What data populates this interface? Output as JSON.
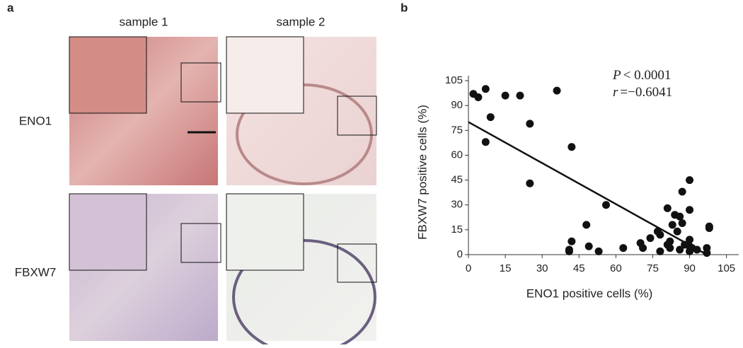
{
  "panel_labels": [
    "a",
    "b"
  ],
  "micrographs": {
    "columns": [
      "sample 1",
      "sample 2"
    ],
    "rows": [
      "ENO1",
      "FBXW7"
    ]
  },
  "chart_data": {
    "type": "scatter",
    "xlabel": "ENO1 positive cells (%)",
    "ylabel": "FBXW7 positive cells (%)",
    "annotations": [
      {
        "symbol": "P",
        "text": "< 0.0001"
      },
      {
        "symbol": "r",
        "text": "=−0.6041"
      }
    ],
    "xlim": [
      0,
      110
    ],
    "ylim": [
      0,
      108
    ],
    "xticks": [
      0,
      15,
      30,
      45,
      60,
      75,
      90,
      105
    ],
    "yticks": [
      0,
      15,
      30,
      45,
      60,
      75,
      90,
      105
    ],
    "color": "#111111",
    "x": [
      2,
      4,
      7,
      9,
      7,
      15,
      21,
      25,
      25,
      36,
      42,
      41,
      42,
      41,
      48,
      49,
      53,
      56,
      63,
      70,
      71,
      74,
      77,
      78,
      78,
      81,
      81,
      82,
      83,
      82,
      84,
      85,
      86,
      87,
      86,
      87,
      88,
      90,
      90,
      90,
      90,
      91,
      93,
      90,
      97,
      97,
      98,
      98
    ],
    "values": [
      97,
      95,
      100,
      83,
      68,
      96,
      96,
      79,
      43,
      99,
      65,
      3,
      8,
      2,
      18,
      5,
      2,
      30,
      4,
      7,
      4,
      10,
      14,
      12,
      2,
      6,
      28,
      4,
      18,
      8,
      24,
      14,
      23,
      19,
      3,
      38,
      6,
      45,
      27,
      5,
      2,
      4,
      3,
      9,
      4,
      1,
      17,
      16
    ],
    "trend_line": {
      "x": [
        0,
        97
      ],
      "values": [
        80,
        0
      ]
    }
  }
}
